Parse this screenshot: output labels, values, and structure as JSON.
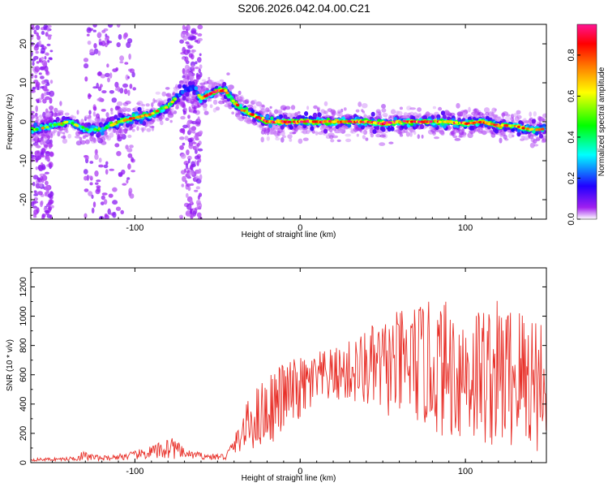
{
  "title": "S206.2026.042.04.00.C21",
  "chart_data": [
    {
      "type": "heatmap",
      "xlabel": "Height of straight line (km)",
      "ylabel": "Frequency (Hz)",
      "xlim": [
        -163,
        149
      ],
      "ylim": [
        -25,
        25
      ],
      "xticks": [
        -100,
        0,
        100
      ],
      "xtick_labels": [
        "-100",
        "0",
        "100"
      ],
      "yticks": [
        -20,
        -10,
        0,
        10,
        20
      ],
      "ytick_labels": [
        "-20",
        "-10",
        "0",
        "10",
        "20"
      ],
      "colorbar": {
        "label": "Normalized spectral amplitude",
        "range": [
          0,
          0.95
        ],
        "ticks": [
          0.0,
          0.2,
          0.4,
          0.6,
          0.8
        ],
        "tick_labels": [
          "0.0",
          "0.2",
          "0.4",
          "0.6",
          "0.8"
        ]
      },
      "ridge": {
        "x": [
          -160,
          -150,
          -140,
          -130,
          -120,
          -110,
          -100,
          -90,
          -80,
          -75,
          -70,
          -65,
          -60,
          -55,
          -50,
          -45,
          -40,
          -35,
          -30,
          -25,
          -20,
          -10,
          0,
          10,
          20,
          30,
          40,
          50,
          60,
          70,
          80,
          90,
          100,
          110,
          120,
          130,
          140,
          148
        ],
        "y": [
          -2,
          -1,
          0,
          -2,
          -2,
          0,
          1,
          2,
          4,
          6,
          8,
          9,
          6,
          7,
          8,
          8,
          5,
          3,
          2,
          1,
          0,
          0,
          0,
          0,
          0,
          0,
          0,
          -0.5,
          0,
          0,
          0,
          0,
          -0.5,
          0,
          -1,
          -1,
          -2,
          -2
        ],
        "amp": [
          0.3,
          0.35,
          0.4,
          0.4,
          0.45,
          0.5,
          0.55,
          0.6,
          0.55,
          0.5,
          0.4,
          0.35,
          0.75,
          0.8,
          0.85,
          0.8,
          0.55,
          0.6,
          0.65,
          0.7,
          0.75,
          0.85,
          0.9,
          0.92,
          0.9,
          0.8,
          0.8,
          0.85,
          0.8,
          0.75,
          0.7,
          0.75,
          0.7,
          0.7,
          0.65,
          0.6,
          0.55,
          0.5
        ]
      }
    },
    {
      "type": "line",
      "xlabel": "Height of straight line (km)",
      "ylabel": "SNR (10 * v/v)",
      "xlim": [
        -163,
        149
      ],
      "ylim": [
        0,
        1330
      ],
      "xticks": [
        -100,
        0,
        100
      ],
      "xtick_labels": [
        "-100",
        "0",
        "100"
      ],
      "yticks": [
        0,
        200,
        400,
        600,
        800,
        1000,
        1200
      ],
      "ytick_labels": [
        "0",
        "200",
        "400",
        "600",
        "800",
        "1000",
        "1200"
      ],
      "color": "#e8312a",
      "envelope": {
        "x": [
          -163,
          -140,
          -132,
          -120,
          -100,
          -85,
          -78,
          -70,
          -55,
          -45,
          -38,
          -30,
          -20,
          -10,
          0,
          10,
          20,
          30,
          40,
          50,
          60,
          70,
          80,
          90,
          100,
          110,
          120,
          130,
          140,
          149
        ],
        "mean": [
          20,
          25,
          45,
          30,
          50,
          80,
          110,
          60,
          40,
          40,
          150,
          280,
          360,
          450,
          500,
          560,
          600,
          620,
          640,
          650,
          660,
          680,
          650,
          640,
          620,
          610,
          600,
          590,
          580,
          560
        ],
        "amp": [
          10,
          12,
          35,
          15,
          30,
          60,
          90,
          30,
          20,
          25,
          80,
          200,
          250,
          250,
          220,
          200,
          180,
          220,
          280,
          330,
          380,
          420,
          450,
          480,
          500,
          500,
          520,
          520,
          520,
          500
        ]
      }
    }
  ]
}
